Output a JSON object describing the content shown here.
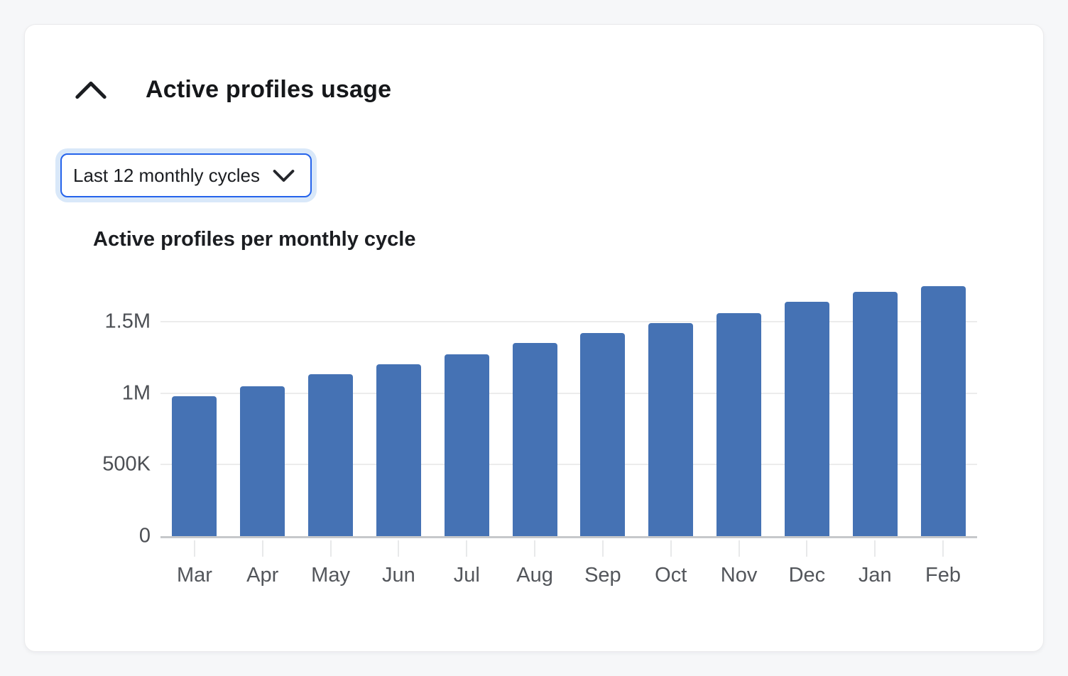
{
  "page": {
    "background": "#f6f7f9"
  },
  "card": {
    "title": "Active profiles usage",
    "collapse_icon": "chevron-up-icon"
  },
  "filter": {
    "selected": "Last 12 monthly cycles",
    "border_color": "#2563eb",
    "ring_color": "#d9e8f9",
    "chevron_icon": "chevron-down-icon"
  },
  "chart_data": {
    "type": "bar",
    "title": "Active profiles per monthly cycle",
    "categories": [
      "Mar",
      "Apr",
      "May",
      "Jun",
      "Jul",
      "Aug",
      "Sep",
      "Oct",
      "Nov",
      "Dec",
      "Jan",
      "Feb"
    ],
    "values": [
      980000,
      1050000,
      1130000,
      1200000,
      1270000,
      1350000,
      1420000,
      1490000,
      1560000,
      1640000,
      1710000,
      1750000
    ],
    "series_name": "Active profiles",
    "xlabel": "",
    "ylabel": "",
    "ylim": [
      0,
      1783000
    ],
    "yticks": [
      {
        "value": 0,
        "label": "0"
      },
      {
        "value": 500000,
        "label": "500K"
      },
      {
        "value": 1000000,
        "label": "1M"
      },
      {
        "value": 1500000,
        "label": "1.5M"
      }
    ],
    "bar_color": "#4572b4",
    "grid": true,
    "gridline_color": "#ececec",
    "axis_line_color": "#c6c8cb",
    "legend": false
  }
}
